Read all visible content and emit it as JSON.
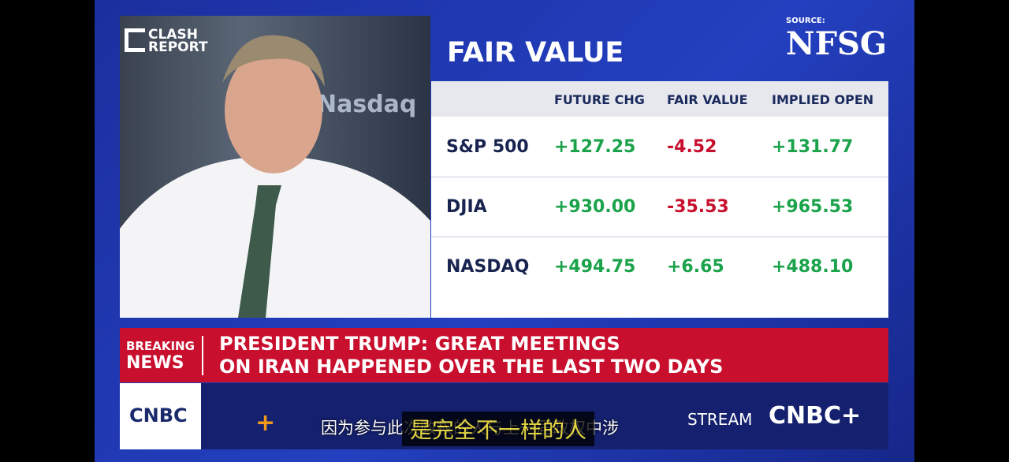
{
  "watermark": [
    "CLASH",
    "REPORT"
  ],
  "video": {
    "background_text": "Nasdaq"
  },
  "panel": {
    "title": "FAIR VALUE"
  },
  "source": {
    "label": "SOURCE:",
    "name": "NFSG"
  },
  "table": {
    "headers": [
      "FUTURE CHG",
      "FAIR VALUE",
      "IMPLIED OPEN"
    ],
    "rows": [
      [
        "S&P 500",
        "+127.25",
        "-4.52",
        "+131.77"
      ],
      [
        "DJIA",
        "+930.00",
        "-35.53",
        "+965.53"
      ],
      [
        "NASDAQ",
        "+494.75",
        "+6.65",
        "+488.10"
      ]
    ]
  },
  "ticker": {
    "label": [
      "BREAKING",
      "NEWS"
    ],
    "headline": [
      "PRESIDENT TRUMP: GREAT MEETINGS",
      "ON IRAN HAPPENED OVER THE LAST TWO DAYS"
    ]
  },
  "bottom_bar": {
    "network": "CNBC",
    "stream": "STREAM",
    "plus": "CNBC+"
  },
  "subtitles": [
    "因为参与此次政权的人与上一届政权中涉",
    "是完全不一样的人"
  ]
}
